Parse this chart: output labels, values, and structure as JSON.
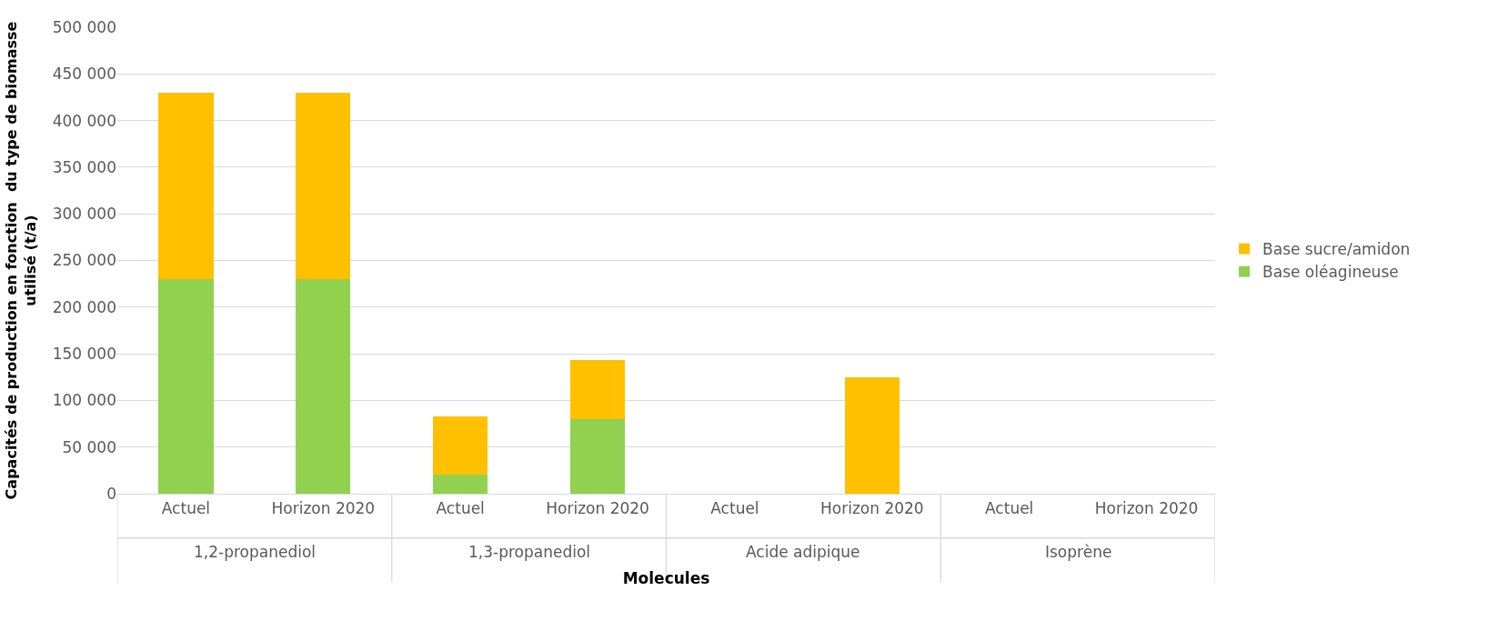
{
  "chart_data": {
    "type": "bar",
    "stacked": true,
    "xlabel": "Molecules",
    "ylabel": "Capacités de production en fonction  du type de biomasse\nutilisé (t/a)",
    "categories": [
      "Actuel",
      "Horizon 2020",
      "Actuel",
      "Horizon 2020",
      "Actuel",
      "Horizon 2020",
      "Actuel",
      "Horizon 2020"
    ],
    "annotations": [
      "1,2-propanediol",
      "1,3-propanediol",
      "Acide adipique",
      "Isoprène"
    ],
    "series": [
      {
        "name": "Base oléagineuse",
        "color": "#92d050",
        "values": [
          230000,
          230000,
          20000,
          80000,
          0,
          0,
          0,
          0
        ]
      },
      {
        "name": "Base sucre/amidon",
        "color": "#ffc000",
        "values": [
          200000,
          200000,
          63000,
          63000,
          0,
          125000,
          0,
          0
        ]
      }
    ],
    "ylim": [
      0,
      500000
    ],
    "yticks": [
      0,
      {
        "value": 50000,
        "label": "50 000"
      },
      {
        "value": 100000,
        "label": "100 000"
      },
      {
        "value": 150000,
        "label": "150 000"
      },
      {
        "value": 200000,
        "label": "200 000"
      },
      {
        "value": 250000,
        "label": "250 000"
      },
      {
        "value": 300000,
        "label": "300 000"
      },
      {
        "value": 350000,
        "label": "350 000"
      },
      {
        "value": 400000,
        "label": "400 000"
      },
      {
        "value": 450000,
        "label": "450 000"
      },
      {
        "value": 500000,
        "label": "500 000"
      }
    ],
    "grid": "y",
    "legend": "right"
  }
}
